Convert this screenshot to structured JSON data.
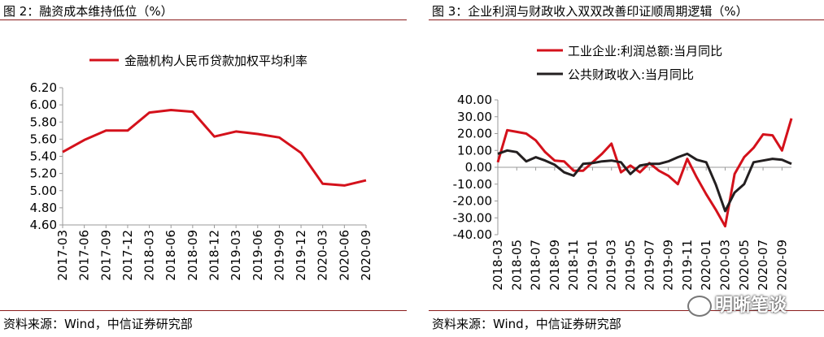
{
  "watermark": "明晰笔谈",
  "colors": {
    "accent": "#d4111b",
    "black": "#231f20",
    "rule": "#8a1c1c"
  },
  "left": {
    "title": "图 2：融资成本维持低位（%）",
    "source": "资料来源：Wind，中信证券研究部"
  },
  "right": {
    "title": "图 3：企业利润与财政收入双双改善印证顺周期逻辑（%）",
    "source": "资料来源：Wind，中信证券研究部"
  },
  "chart_data": [
    {
      "type": "line",
      "title": "图 2：融资成本维持低位（%）",
      "categories": [
        "2017-03",
        "2017-06",
        "2017-09",
        "2017-12",
        "2018-03",
        "2018-06",
        "2018-09",
        "2018-12",
        "2019-03",
        "2019-06",
        "2019-09",
        "2019-12",
        "2020-03",
        "2020-06",
        "2020-09"
      ],
      "series": [
        {
          "name": "金融机构人民币贷款加权平均利率",
          "color": "#d4111b",
          "values": [
            5.45,
            5.59,
            5.7,
            5.7,
            5.91,
            5.94,
            5.92,
            5.63,
            5.69,
            5.66,
            5.62,
            5.44,
            5.08,
            5.06,
            5.12
          ]
        }
      ],
      "yticks": [
        "6.20",
        "6.00",
        "5.80",
        "5.60",
        "5.40",
        "5.20",
        "5.00",
        "4.80",
        "4.60"
      ],
      "ylim": [
        4.6,
        6.2
      ],
      "legend": "top",
      "grid": false
    },
    {
      "type": "line",
      "title": "图 3：企业利润与财政收入双双改善印证顺周期逻辑（%）",
      "categories": [
        "2018-03",
        "2018-04",
        "2018-05",
        "2018-06",
        "2018-07",
        "2018-08",
        "2018-09",
        "2018-10",
        "2018-11",
        "2018-12",
        "2019-01",
        "2019-02",
        "2019-03",
        "2019-04",
        "2019-05",
        "2019-06",
        "2019-07",
        "2019-08",
        "2019-09",
        "2019-10",
        "2019-11",
        "2019-12",
        "2020-01",
        "2020-02",
        "2020-03",
        "2020-04",
        "2020-05",
        "2020-06",
        "2020-07",
        "2020-08",
        "2020-09",
        "2020-10"
      ],
      "xticks": [
        "2018-03",
        "2018-05",
        "2018-07",
        "2018-09",
        "2018-11",
        "2019-01",
        "2019-03",
        "2019-05",
        "2019-07",
        "2019-09",
        "2019-11",
        "2020-01",
        "2020-03",
        "2020-05",
        "2020-07",
        "2020-09"
      ],
      "series": [
        {
          "name": "工业企业:利润总额:当月同比",
          "color": "#d4111b",
          "values": [
            3,
            22,
            21,
            20,
            16,
            9,
            4,
            3.5,
            -2,
            -2,
            3,
            8,
            14,
            -3,
            1,
            -3,
            2.5,
            -2,
            -5,
            -10,
            5,
            -6,
            -16,
            -25,
            -35,
            -4,
            6,
            11.5,
            19.5,
            19,
            10,
            29
          ]
        },
        {
          "name": "公共财政收入:当月同比",
          "color": "#231f20",
          "values": [
            8,
            10,
            9,
            3.5,
            6,
            4,
            1.5,
            -3,
            -5,
            2,
            2.5,
            3.5,
            4,
            3,
            -4,
            1,
            2,
            2,
            3.5,
            6,
            8,
            4.5,
            3,
            -10,
            -26,
            -15,
            -10,
            3,
            4,
            5,
            4.5,
            2
          ]
        }
      ],
      "yticks": [
        "40.00",
        "30.00",
        "20.00",
        "10.00",
        "0.00",
        "-10.00",
        "-20.00",
        "-30.00",
        "-40.00"
      ],
      "ylim": [
        -40,
        40
      ],
      "legend": "top-left",
      "grid": false
    }
  ]
}
